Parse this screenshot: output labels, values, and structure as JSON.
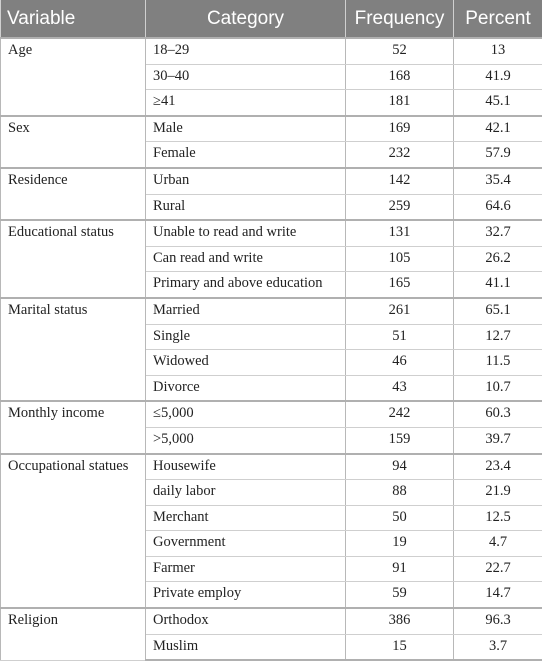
{
  "table": {
    "header": [
      "Variable",
      "Category",
      "Frequency",
      "Percent"
    ],
    "groups": [
      {
        "variable": "Age",
        "rows": [
          [
            "18–29",
            52,
            13
          ],
          [
            "30–40",
            168,
            41.9
          ],
          [
            "≥41",
            181,
            45.1
          ]
        ]
      },
      {
        "variable": "Sex",
        "rows": [
          [
            "Male",
            169,
            42.1
          ],
          [
            "Female",
            232,
            57.9
          ]
        ]
      },
      {
        "variable": "Residence",
        "rows": [
          [
            "Urban",
            142,
            35.4
          ],
          [
            "Rural",
            259,
            64.6
          ]
        ]
      },
      {
        "variable": "Educational status",
        "rows": [
          [
            "Unable to read and write",
            131,
            32.7
          ],
          [
            "Can read and write",
            105,
            26.2
          ],
          [
            "Primary and above education",
            165,
            41.1
          ]
        ]
      },
      {
        "variable": "Marital status",
        "rows": [
          [
            "Married",
            261,
            65.1
          ],
          [
            "Single",
            51,
            12.7
          ],
          [
            "Widowed",
            46,
            11.5
          ],
          [
            "Divorce",
            43,
            10.7
          ]
        ]
      },
      {
        "variable": "Monthly income",
        "rows": [
          [
            "≤5,000",
            242,
            60.3
          ],
          [
            ">5,000",
            159,
            39.7
          ]
        ]
      },
      {
        "variable": "Occupational statues",
        "rows": [
          [
            "Housewife",
            94,
            23.4
          ],
          [
            "daily labor",
            88,
            21.9
          ],
          [
            "Merchant",
            50,
            12.5
          ],
          [
            "Government",
            19,
            4.7
          ],
          [
            "Farmer",
            91,
            22.7
          ],
          [
            "Private employ",
            59,
            14.7
          ]
        ]
      },
      {
        "variable": "Religion",
        "rows": [
          [
            "Orthodox",
            386,
            96.3
          ],
          [
            "Muslim",
            15,
            3.7
          ]
        ]
      }
    ]
  }
}
